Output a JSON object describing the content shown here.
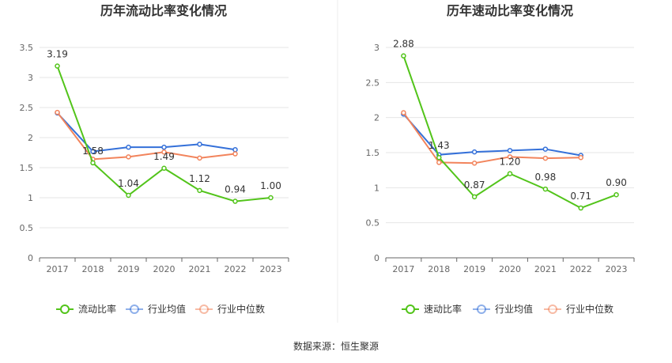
{
  "source_text": "数据来源：恒生聚源",
  "chart_data": [
    {
      "type": "line",
      "title": "历年流动比率变化情况",
      "categories": [
        "2017",
        "2018",
        "2019",
        "2020",
        "2021",
        "2022",
        "2023"
      ],
      "ylim": [
        0,
        3.5
      ],
      "yticks": [
        "0",
        "0.5",
        "1",
        "1.5",
        "2",
        "2.5",
        "3",
        "3.5"
      ],
      "grid": true,
      "legend_position": "bottom",
      "series": [
        {
          "name": "流动比率",
          "color": "#52c41a",
          "labeled": true,
          "values": [
            3.19,
            1.58,
            1.04,
            1.49,
            1.12,
            0.94,
            1.0
          ],
          "labels": [
            "3.19",
            "1.58",
            "1.04",
            "1.49",
            "1.12",
            "0.94",
            "1.00"
          ]
        },
        {
          "name": "行业均值",
          "color": "#3470d9",
          "labeled": false,
          "values": [
            2.41,
            1.77,
            1.84,
            1.84,
            1.89,
            1.8,
            null
          ]
        },
        {
          "name": "行业中位数",
          "color": "#f2845c",
          "labeled": false,
          "values": [
            2.42,
            1.64,
            1.68,
            1.76,
            1.66,
            1.73,
            null
          ]
        }
      ]
    },
    {
      "type": "line",
      "title": "历年速动比率变化情况",
      "categories": [
        "2017",
        "2018",
        "2019",
        "2020",
        "2021",
        "2022",
        "2023"
      ],
      "ylim": [
        0,
        3
      ],
      "yticks": [
        "0",
        "0.5",
        "1",
        "1.5",
        "2",
        "2.5",
        "3"
      ],
      "grid": true,
      "legend_position": "bottom",
      "series": [
        {
          "name": "速动比率",
          "color": "#52c41a",
          "labeled": true,
          "values": [
            2.88,
            1.43,
            0.87,
            1.2,
            0.98,
            0.71,
            0.9
          ],
          "labels": [
            "2.88",
            "1.43",
            "0.87",
            "1.20",
            "0.98",
            "0.71",
            "0.90"
          ]
        },
        {
          "name": "行业均值",
          "color": "#3470d9",
          "labeled": false,
          "values": [
            2.05,
            1.47,
            1.51,
            1.53,
            1.55,
            1.46,
            null
          ]
        },
        {
          "name": "行业中位数",
          "color": "#f2845c",
          "labeled": false,
          "values": [
            2.07,
            1.36,
            1.35,
            1.44,
            1.42,
            1.43,
            null
          ]
        }
      ]
    }
  ]
}
